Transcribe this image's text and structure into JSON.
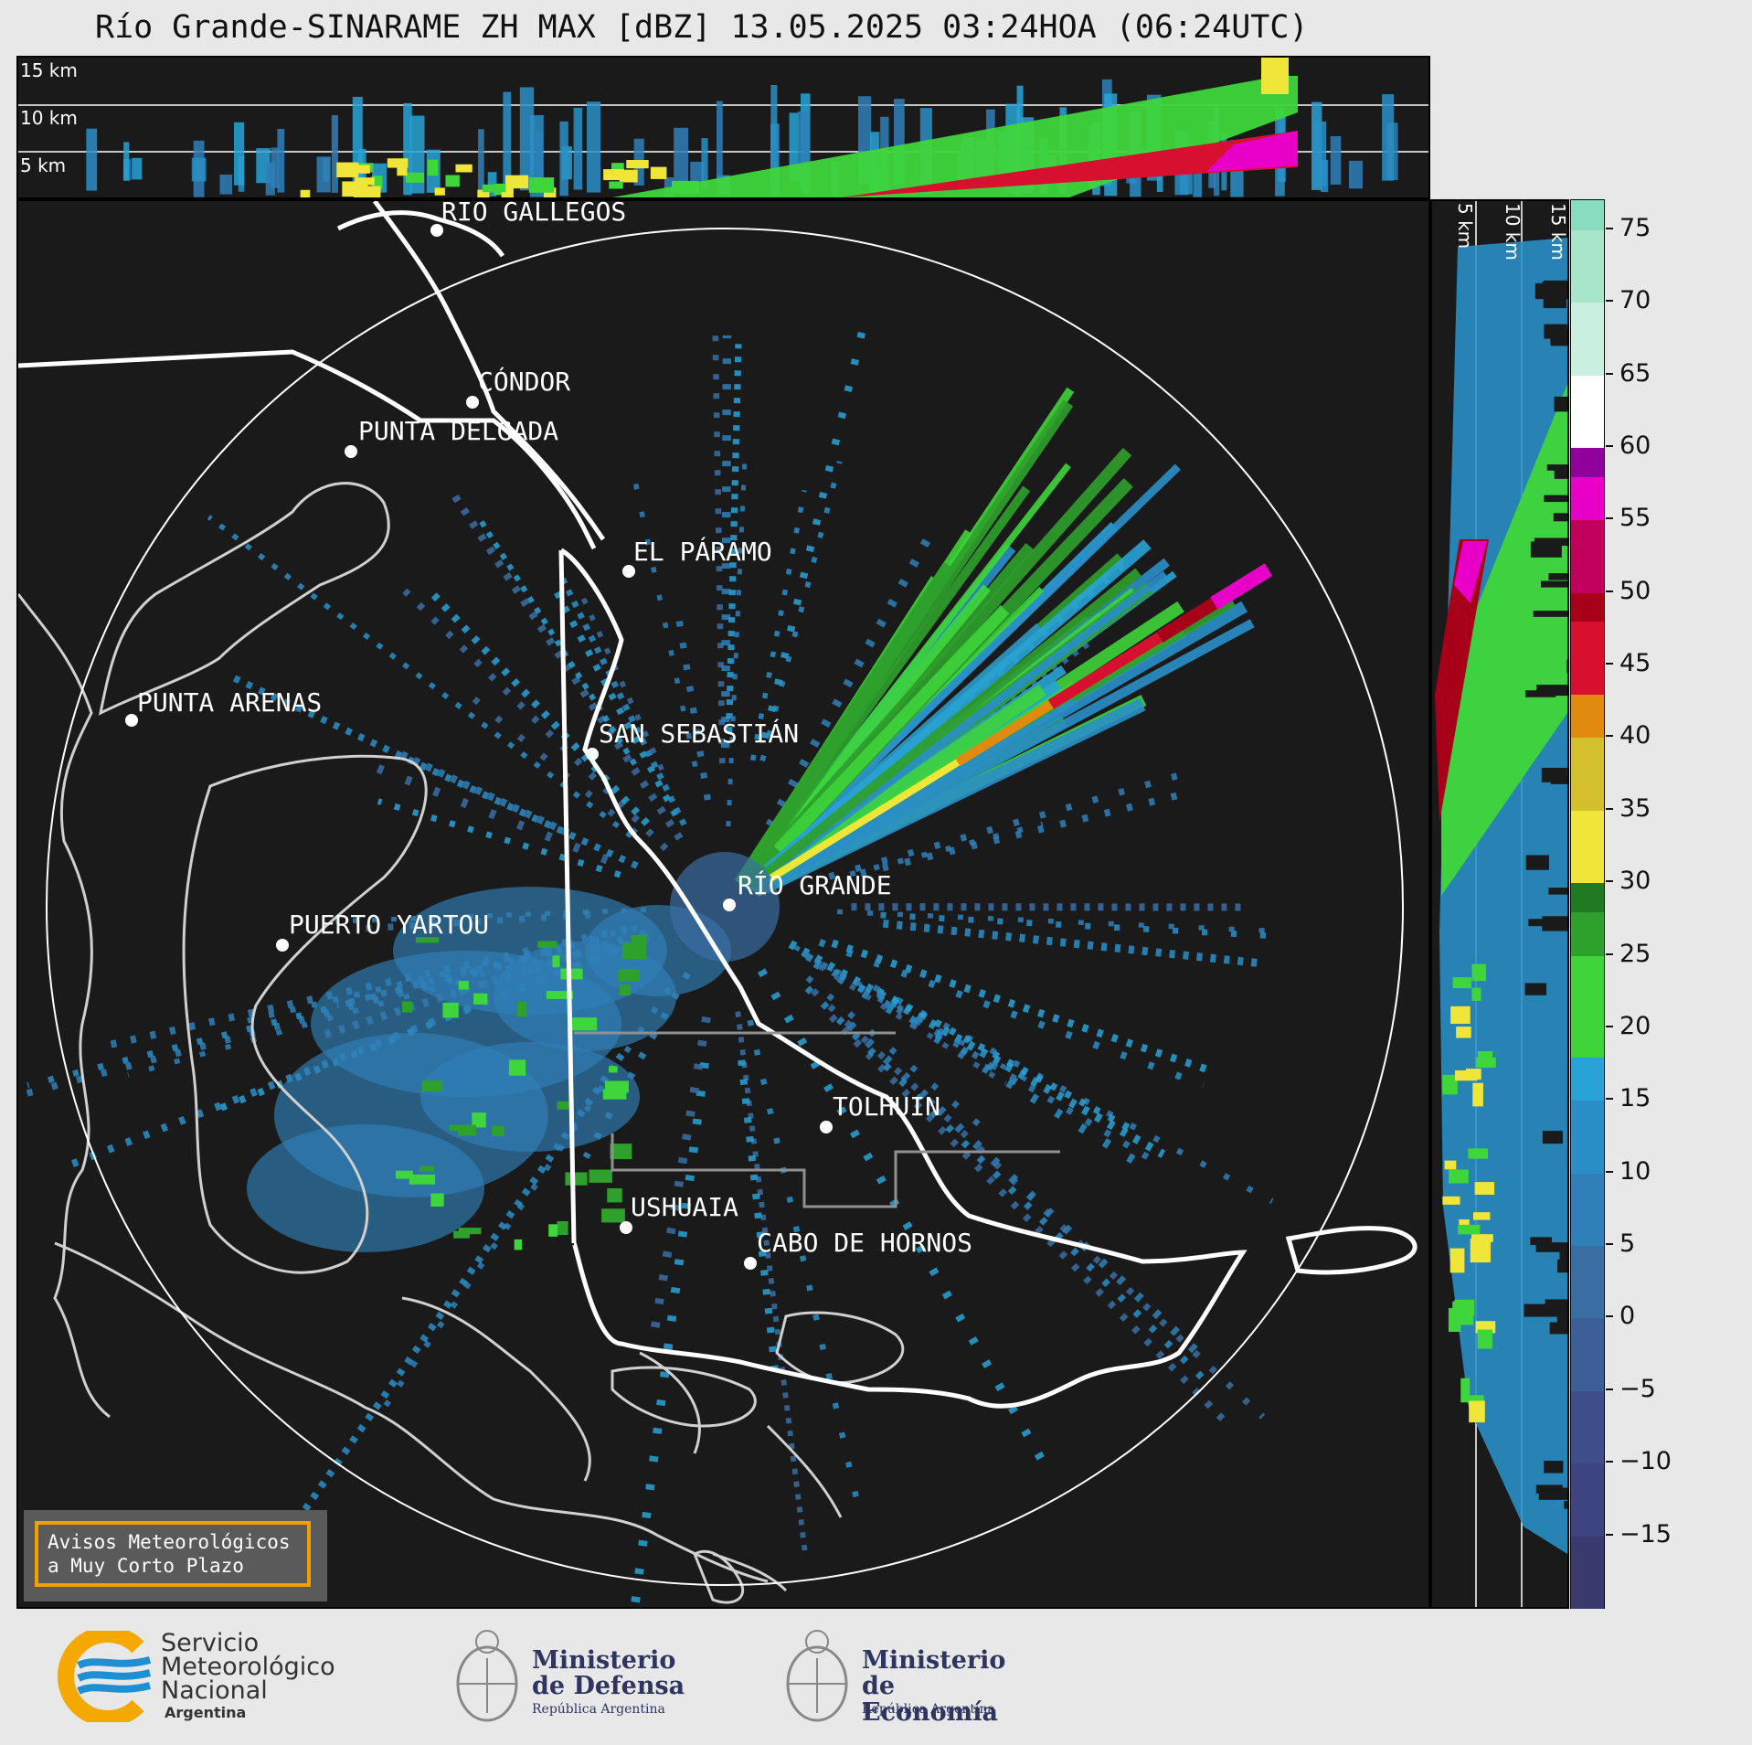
{
  "title": "Río Grande-SINARAME ZH MAX [dBZ] 13.05.2025 03:24HOA (06:24UTC)",
  "top_section": {
    "heights": [
      "15 km",
      "10 km",
      "5 km"
    ]
  },
  "right_section": {
    "heights": [
      "5 km",
      "10 km",
      "15 km"
    ]
  },
  "cities": [
    {
      "name": "RÍO GALLEGOS"
    },
    {
      "name": "CÓNDOR"
    },
    {
      "name": "PUNTA DELGADA"
    },
    {
      "name": "PUNTA ARENAS"
    },
    {
      "name": "EL PÁRAMO"
    },
    {
      "name": "SAN SEBASTIÁN"
    },
    {
      "name": "RÍO GRANDE"
    },
    {
      "name": "PUERTO YARTOU"
    },
    {
      "name": "TOLHUIN"
    },
    {
      "name": "USHUAIA"
    },
    {
      "name": "CABO DE HORNOS"
    }
  ],
  "colorbar": {
    "ticks": [
      "75",
      "70",
      "65",
      "60",
      "55",
      "50",
      "45",
      "40",
      "35",
      "30",
      "25",
      "20",
      "15",
      "10",
      "5",
      "0",
      "−5",
      "−10",
      "−15"
    ],
    "colors": {
      "-20": "#3b3a6e",
      "-15": "#3e4480",
      "-10": "#3f4d8a",
      "-5": "#3d5f97",
      "0": "#3a6ea3",
      "5": "#2f80b8",
      "10": "#2a8fc7",
      "15": "#28a3d6",
      "18": "#3ed43a",
      "20": "#3fd63b",
      "25": "#2ea02c",
      "28": "#1f7a22",
      "30": "#f0e63a",
      "35": "#d4c02c",
      "40": "#e08a10",
      "43": "#d81030",
      "48": "#a80018",
      "50": "#c0005a",
      "55": "#e800c8",
      "58": "#90009a",
      "60": "#ffffff",
      "65": "#c8efe0",
      "70": "#a8e6cc",
      "75": "#88dcc0"
    }
  },
  "warning": {
    "line1": "Avisos Meteorológicos",
    "line2": "a Muy Corto Plazo"
  },
  "logos": {
    "smn": {
      "line1": "Servicio",
      "line2": "Meteorológico",
      "line3": "Nacional",
      "line4": "Argentina"
    },
    "defensa": {
      "line1": "Ministerio",
      "line2": "de Defensa",
      "sub": "República Argentina"
    },
    "economia": {
      "line1": "Ministerio",
      "line2": "de Economía",
      "sub": "República Argentina"
    }
  }
}
